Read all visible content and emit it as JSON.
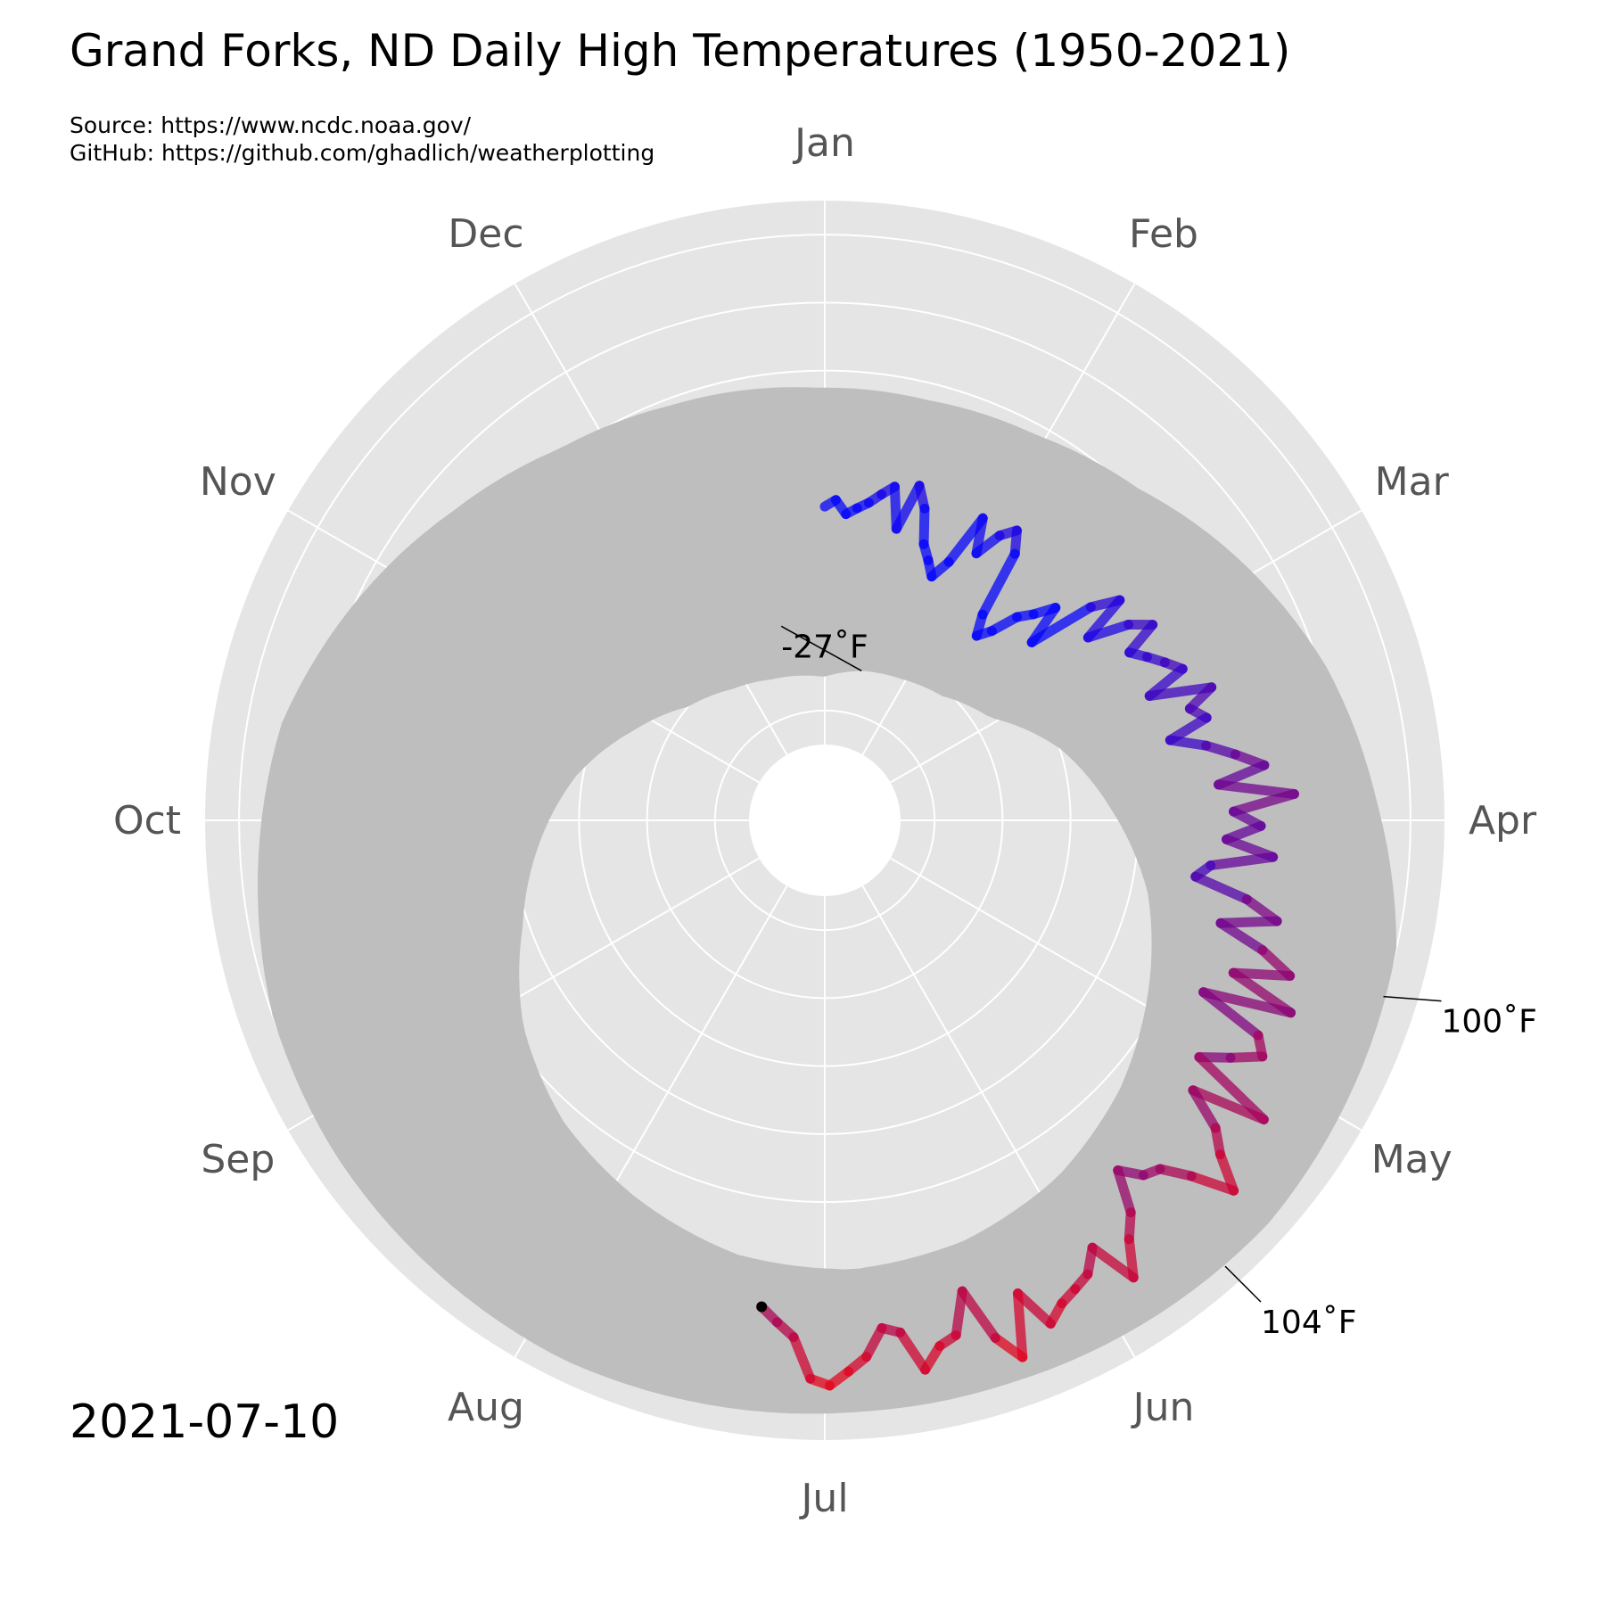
{
  "chart_data": {
    "type": "line",
    "projection": "polar",
    "title": "Grand Forks, ND Daily High Temperatures (1950-2021)",
    "source_lines": [
      "Source: https://www.ncdc.noaa.gov/",
      "GitHub: https://github.com/ghadlich/weatherplotting"
    ],
    "date_label": "2021-07-10",
    "month_labels": [
      "Jan",
      "Feb",
      "Mar",
      "Apr",
      "May",
      "Jun",
      "Jul",
      "Aug",
      "Sep",
      "Oct",
      "Nov",
      "Dec"
    ],
    "radial_range_F": [
      -50,
      110
    ],
    "grid": true,
    "direction": "clockwise",
    "start": "Jan at top",
    "annotations": [
      {
        "label": "-27˚F",
        "day": 15,
        "value": -27
      },
      {
        "label": "100˚F",
        "day": 110,
        "value": 100
      },
      {
        "label": "104˚F",
        "day": 141,
        "value": 104
      }
    ],
    "historical_band": {
      "color": "#bebebe",
      "days": [
        1,
        15,
        30,
        45,
        60,
        75,
        90,
        105,
        120,
        135,
        150,
        165,
        180,
        195,
        210,
        225,
        240,
        255,
        270,
        285,
        300,
        315,
        330,
        345,
        365
      ],
      "min_high_F": [
        -30,
        -27,
        -25,
        -22,
        -15,
        0,
        12,
        25,
        35,
        45,
        53,
        58,
        60,
        58,
        52,
        45,
        35,
        22,
        12,
        2,
        -10,
        -20,
        -25,
        -28,
        -30
      ],
      "max_high_F": [
        55,
        55,
        57,
        62,
        72,
        82,
        90,
        100,
        102,
        104,
        103,
        102,
        102,
        103,
        104,
        103,
        102,
        100,
        95,
        90,
        80,
        70,
        62,
        58,
        55
      ]
    },
    "series": [
      {
        "name": "2021",
        "color_scale": [
          "#0000ff",
          "#ff0000"
        ],
        "days": [
          1,
          3,
          5,
          7,
          9,
          11,
          13,
          15,
          17,
          19,
          21,
          23,
          25,
          27,
          29,
          31,
          33,
          35,
          37,
          39,
          41,
          43,
          45,
          47,
          49,
          51,
          53,
          55,
          57,
          59,
          61,
          63,
          65,
          67,
          69,
          71,
          73,
          75,
          77,
          79,
          81,
          83,
          85,
          87,
          89,
          91,
          93,
          95,
          97,
          99,
          101,
          103,
          105,
          107,
          109,
          111,
          113,
          115,
          117,
          119,
          121,
          123,
          125,
          127,
          129,
          131,
          133,
          135,
          137,
          139,
          141,
          143,
          145,
          147,
          149,
          151,
          153,
          155,
          157,
          159,
          161,
          163,
          165,
          167,
          169,
          171,
          173,
          175,
          177,
          179,
          181,
          183,
          185,
          187,
          189,
          191
        ],
        "high_F": [
          20,
          22,
          18,
          20,
          22,
          25,
          28,
          16,
          30,
          24,
          14,
          10,
          6,
          12,
          28,
          18,
          26,
          30,
          24,
          4,
          -2,
          2,
          10,
          14,
          20,
          8,
          28,
          36,
          22,
          34,
          40,
          30,
          34,
          38,
          42,
          30,
          48,
          40,
          44,
          32,
          42,
          50,
          58,
          44,
          66,
          48,
          56,
          46,
          60,
          42,
          38,
          54,
          64,
          48,
          62,
          72,
          56,
          76,
          50,
          70,
          74,
          66,
          58,
          84,
          62,
          74,
          80,
          90,
          78,
          70,
          68,
          62,
          74,
          80,
          90,
          76,
          82,
          84,
          86,
          90,
          78,
          96,
          88,
          72,
          84,
          86,
          92,
          80,
          78,
          86,
          90,
          94,
          92,
          80,
          76,
          72
        ]
      }
    ]
  }
}
